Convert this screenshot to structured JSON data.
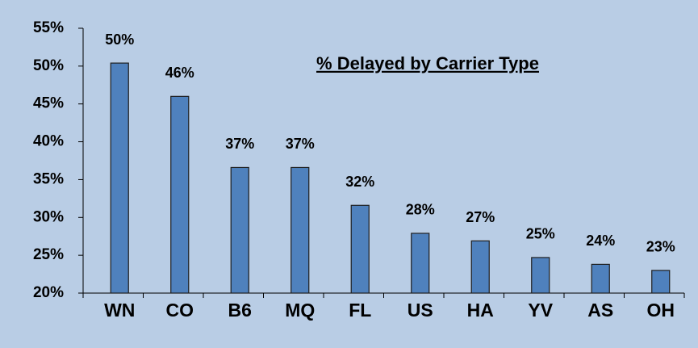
{
  "chart_data": {
    "type": "bar",
    "title": "% Delayed by Carrier Type",
    "categories": [
      "WN",
      "CO",
      "B6",
      "MQ",
      "FL",
      "US",
      "HA",
      "YV",
      "AS",
      "OH"
    ],
    "values": [
      50.4,
      46.0,
      36.6,
      36.6,
      31.6,
      27.9,
      26.9,
      24.7,
      23.8,
      23.0
    ],
    "value_labels": [
      "50%",
      "46%",
      "37%",
      "37%",
      "32%",
      "28%",
      "27%",
      "25%",
      "24%",
      "23%"
    ],
    "color": "#4f81bd",
    "ylim": [
      20,
      55
    ],
    "yticks": [
      {
        "value": 20,
        "label": "20%"
      },
      {
        "value": 25,
        "label": "25%"
      },
      {
        "value": 30,
        "label": "30%"
      },
      {
        "value": 35,
        "label": "35%"
      },
      {
        "value": 40,
        "label": "40%"
      },
      {
        "value": 45,
        "label": "45%"
      },
      {
        "value": 50,
        "label": "50%"
      },
      {
        "value": 55,
        "label": "55%"
      }
    ],
    "grid": false
  }
}
